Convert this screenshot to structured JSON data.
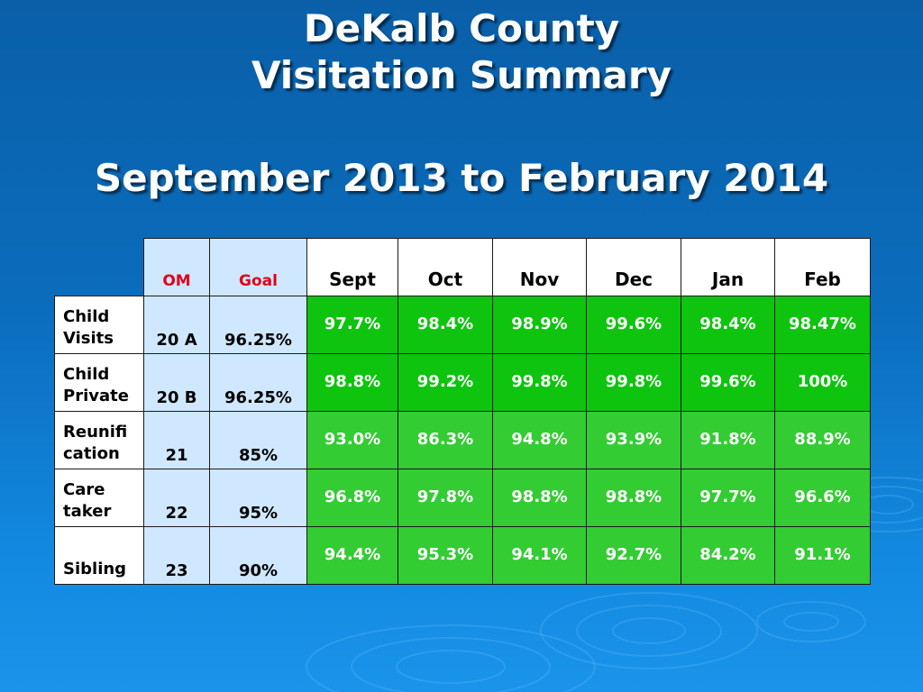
{
  "title": {
    "line1": "DeKalb County",
    "line2": "Visitation Summary",
    "subtitle": "September 2013 to February 2014"
  },
  "table": {
    "headers": {
      "om": "OM",
      "goal": "Goal",
      "months": [
        "Sept",
        "Oct",
        "Nov",
        "Dec",
        "Jan",
        "Feb"
      ]
    },
    "rows": [
      {
        "label_line1": "Child",
        "label_line2": "Visits",
        "om": "20 A",
        "goal": "96.25%",
        "values": [
          "97.7%",
          "98.4%",
          "98.9%",
          "99.6%",
          "98.4%",
          "98.47%"
        ]
      },
      {
        "label_line1": "Child",
        "label_line2": "Private",
        "om": "20 B",
        "goal": "96.25%",
        "values": [
          "98.8%",
          "99.2%",
          "99.8%",
          "99.8%",
          "99.6%",
          "100%"
        ]
      },
      {
        "label_line1": "Reunifi",
        "label_line2": "cation",
        "om": "21",
        "goal": "85%",
        "values": [
          "93.0%",
          "86.3%",
          "94.8%",
          "93.9%",
          "91.8%",
          "88.9%"
        ]
      },
      {
        "label_line1": "Care",
        "label_line2": "taker",
        "om": "22",
        "goal": "95%",
        "values": [
          "96.8%",
          "97.8%",
          "98.8%",
          "98.8%",
          "97.7%",
          "96.6%"
        ]
      },
      {
        "label_line1": "",
        "label_line2": "Sibling",
        "om": "23",
        "goal": "90%",
        "values": [
          "94.4%",
          "95.3%",
          "94.1%",
          "92.7%",
          "84.2%",
          "91.1%"
        ]
      }
    ]
  },
  "colors": {
    "background": "#0b6dbd",
    "header_blue": "#cfe8ff",
    "header_red_text": "#e0001a",
    "green_dark": "#0ec40e",
    "green_light": "#33cc33"
  }
}
